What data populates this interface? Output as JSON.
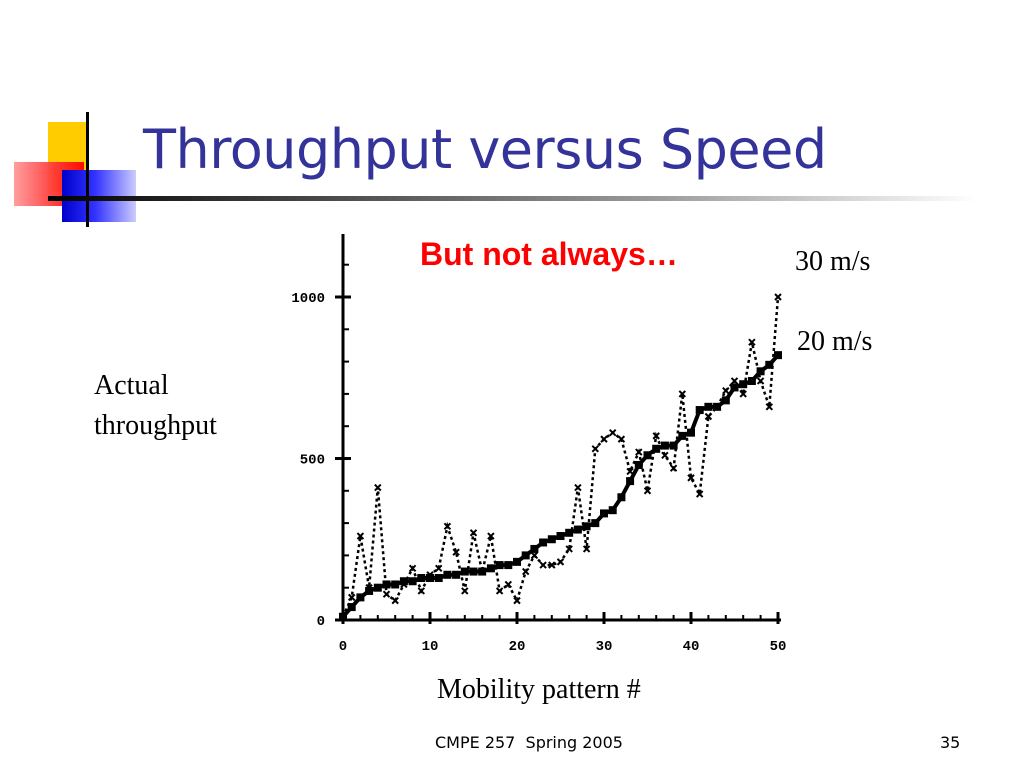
{
  "slide": {
    "title": "Throughput versus Speed",
    "subtitle": "But not always…",
    "footer_text": "CMPE 257  Spring 2005",
    "page_number": "35"
  },
  "colors": {
    "title": "#333399",
    "subtitle": "#ff0000",
    "deco_yellow": "#ffcc00",
    "deco_red": "#ff3333",
    "deco_blue": "#3333ff"
  },
  "chart_data": {
    "type": "line",
    "xlabel": "Mobility pattern #",
    "ylabel": "Actual throughput",
    "xlim": [
      0,
      50
    ],
    "ylim": [
      0,
      1000
    ],
    "x_ticks": [
      0,
      10,
      20,
      30,
      40,
      50
    ],
    "y_ticks": [
      0,
      500,
      1000
    ],
    "x_tick_labels": [
      "0",
      "10",
      "20",
      "30",
      "40",
      "50"
    ],
    "y_tick_labels": [
      "0",
      "500",
      "1000"
    ],
    "grid": false,
    "series": [
      {
        "name": "30 m/s",
        "style": "dashed",
        "x": [
          0,
          1,
          2,
          3,
          4,
          5,
          6,
          7,
          8,
          9,
          10,
          11,
          12,
          13,
          14,
          15,
          16,
          17,
          18,
          19,
          20,
          21,
          22,
          23,
          24,
          25,
          26,
          27,
          28,
          29,
          30,
          31,
          32,
          33,
          34,
          35,
          36,
          37,
          38,
          39,
          40,
          41,
          42,
          43,
          44,
          45,
          46,
          47,
          48,
          49,
          50
        ],
        "y": [
          10,
          70,
          260,
          100,
          410,
          80,
          60,
          110,
          160,
          90,
          140,
          160,
          290,
          210,
          90,
          270,
          150,
          260,
          90,
          110,
          60,
          150,
          200,
          170,
          170,
          180,
          220,
          410,
          220,
          530,
          560,
          580,
          560,
          460,
          520,
          400,
          570,
          510,
          470,
          700,
          440,
          390,
          630,
          660,
          710,
          740,
          700,
          860,
          740,
          660,
          1000
        ]
      },
      {
        "name": "20 m/s",
        "style": "solid",
        "x": [
          0,
          1,
          2,
          3,
          4,
          5,
          6,
          7,
          8,
          9,
          10,
          11,
          12,
          13,
          14,
          15,
          16,
          17,
          18,
          19,
          20,
          21,
          22,
          23,
          24,
          25,
          26,
          27,
          28,
          29,
          30,
          31,
          32,
          33,
          34,
          35,
          36,
          37,
          38,
          39,
          40,
          41,
          42,
          43,
          44,
          45,
          46,
          47,
          48,
          49,
          50
        ],
        "y": [
          10,
          40,
          70,
          90,
          100,
          110,
          110,
          120,
          120,
          130,
          130,
          130,
          140,
          140,
          150,
          150,
          150,
          160,
          170,
          170,
          180,
          200,
          220,
          240,
          250,
          260,
          270,
          280,
          290,
          300,
          330,
          340,
          380,
          430,
          480,
          510,
          530,
          540,
          540,
          570,
          580,
          650,
          660,
          660,
          680,
          720,
          730,
          740,
          770,
          790,
          820
        ]
      }
    ]
  }
}
